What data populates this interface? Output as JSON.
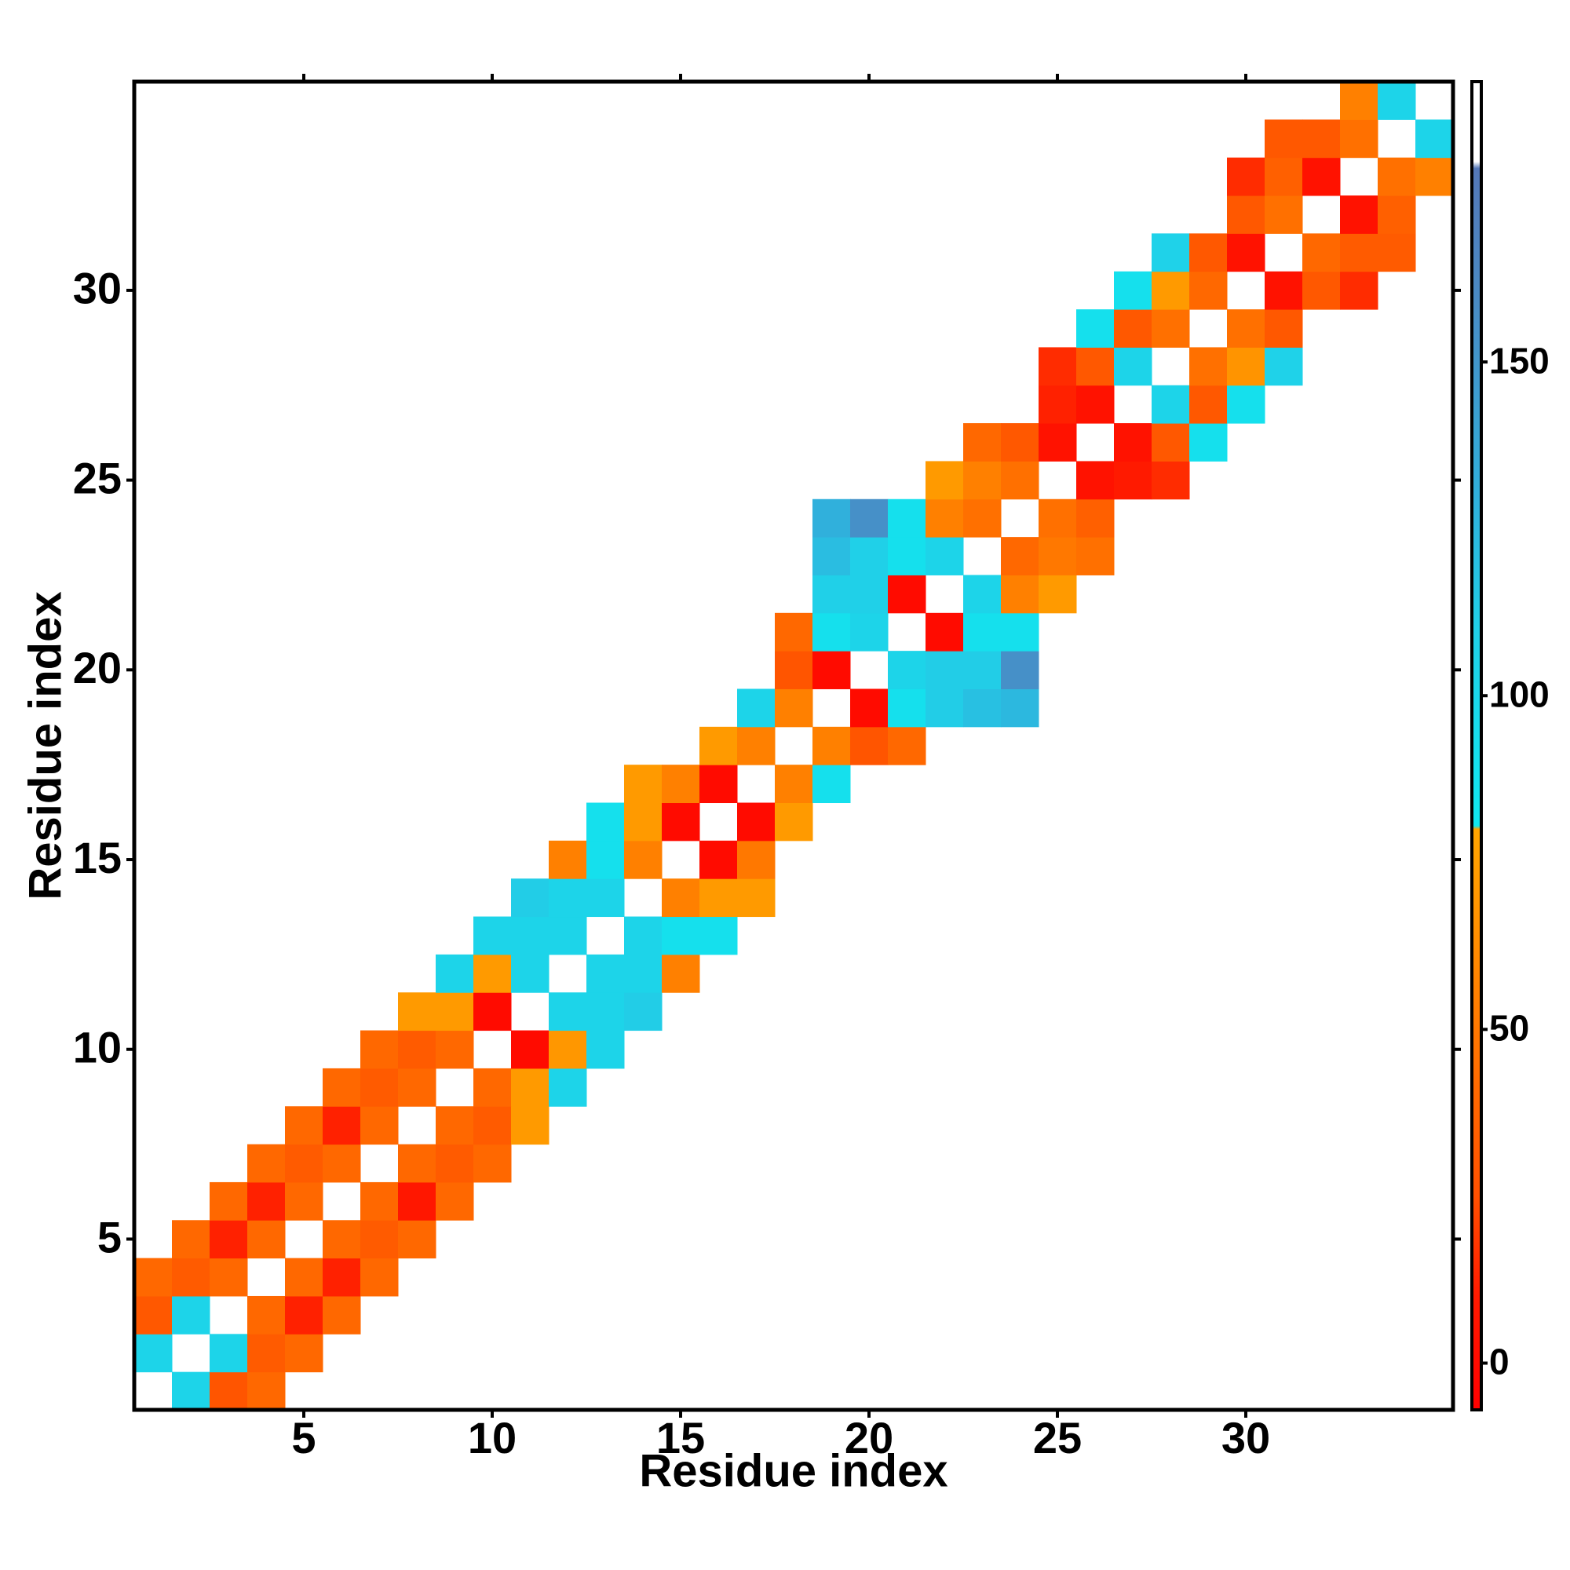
{
  "chart_data": {
    "type": "heatmap",
    "xlabel": "Residue index",
    "ylabel": "Residue index",
    "xlim": [
      0.5,
      35.5
    ],
    "ylim": [
      0.5,
      35.5
    ],
    "xticks": [
      5,
      10,
      15,
      20,
      25,
      30
    ],
    "yticks": [
      5,
      10,
      15,
      20,
      25,
      30
    ],
    "clim": [
      -7,
      192
    ],
    "cticks": [
      0,
      50,
      100,
      150
    ],
    "colorscale": [
      [
        -7,
        "#ff0000"
      ],
      [
        10,
        "#ff1a00"
      ],
      [
        25,
        "#ff5000"
      ],
      [
        45,
        "#ff7000"
      ],
      [
        65,
        "#ff9000"
      ],
      [
        80,
        "#ffa500"
      ],
      [
        80.5,
        "#10e8f0"
      ],
      [
        110,
        "#20d0e8"
      ],
      [
        130,
        "#30b0dc"
      ],
      [
        160,
        "#4a8ac4"
      ],
      [
        179,
        "#5478b8"
      ],
      [
        180,
        "#ffffff"
      ],
      [
        192,
        "#ffffff"
      ]
    ],
    "cells": [
      [
        2,
        1,
        105
      ],
      [
        3,
        1,
        28
      ],
      [
        4,
        1,
        40
      ],
      [
        1,
        2,
        105
      ],
      [
        3,
        2,
        105
      ],
      [
        4,
        2,
        32
      ],
      [
        5,
        2,
        40
      ],
      [
        1,
        3,
        30
      ],
      [
        2,
        3,
        105
      ],
      [
        4,
        3,
        40
      ],
      [
        5,
        3,
        12
      ],
      [
        6,
        3,
        40
      ],
      [
        1,
        4,
        40
      ],
      [
        2,
        4,
        32
      ],
      [
        3,
        4,
        40
      ],
      [
        5,
        4,
        40
      ],
      [
        6,
        4,
        12
      ],
      [
        7,
        4,
        40
      ],
      [
        2,
        5,
        40
      ],
      [
        3,
        5,
        12
      ],
      [
        4,
        5,
        40
      ],
      [
        6,
        5,
        40
      ],
      [
        7,
        5,
        32
      ],
      [
        8,
        5,
        40
      ],
      [
        3,
        6,
        40
      ],
      [
        4,
        6,
        12
      ],
      [
        5,
        6,
        40
      ],
      [
        7,
        6,
        40
      ],
      [
        8,
        6,
        8
      ],
      [
        9,
        6,
        40
      ],
      [
        4,
        7,
        40
      ],
      [
        5,
        7,
        32
      ],
      [
        6,
        7,
        40
      ],
      [
        8,
        7,
        40
      ],
      [
        9,
        7,
        32
      ],
      [
        10,
        7,
        40
      ],
      [
        5,
        8,
        40
      ],
      [
        6,
        8,
        12
      ],
      [
        7,
        8,
        40
      ],
      [
        9,
        8,
        40
      ],
      [
        10,
        8,
        32
      ],
      [
        11,
        8,
        72
      ],
      [
        6,
        9,
        40
      ],
      [
        7,
        9,
        32
      ],
      [
        8,
        9,
        40
      ],
      [
        10,
        9,
        40
      ],
      [
        11,
        9,
        72
      ],
      [
        12,
        9,
        105
      ],
      [
        7,
        10,
        40
      ],
      [
        8,
        10,
        32
      ],
      [
        9,
        10,
        40
      ],
      [
        11,
        10,
        0
      ],
      [
        12,
        10,
        70
      ],
      [
        13,
        10,
        105
      ],
      [
        8,
        11,
        72
      ],
      [
        9,
        11,
        72
      ],
      [
        10,
        11,
        0
      ],
      [
        12,
        11,
        105
      ],
      [
        13,
        11,
        105
      ],
      [
        14,
        11,
        112
      ],
      [
        9,
        12,
        105
      ],
      [
        10,
        12,
        72
      ],
      [
        11,
        12,
        105
      ],
      [
        13,
        12,
        105
      ],
      [
        14,
        12,
        105
      ],
      [
        15,
        12,
        55
      ],
      [
        10,
        13,
        105
      ],
      [
        11,
        13,
        105
      ],
      [
        12,
        13,
        105
      ],
      [
        14,
        13,
        105
      ],
      [
        15,
        13,
        90
      ],
      [
        16,
        13,
        90
      ],
      [
        11,
        14,
        112
      ],
      [
        12,
        14,
        105
      ],
      [
        13,
        14,
        105
      ],
      [
        15,
        14,
        55
      ],
      [
        16,
        14,
        72
      ],
      [
        17,
        14,
        72
      ],
      [
        12,
        15,
        55
      ],
      [
        13,
        15,
        90
      ],
      [
        14,
        15,
        55
      ],
      [
        16,
        15,
        0
      ],
      [
        17,
        15,
        50
      ],
      [
        13,
        16,
        90
      ],
      [
        14,
        16,
        72
      ],
      [
        15,
        16,
        0
      ],
      [
        17,
        16,
        0
      ],
      [
        18,
        16,
        72
      ],
      [
        14,
        17,
        72
      ],
      [
        15,
        17,
        55
      ],
      [
        16,
        17,
        0
      ],
      [
        18,
        17,
        55
      ],
      [
        19,
        17,
        90
      ],
      [
        16,
        18,
        72
      ],
      [
        17,
        18,
        55
      ],
      [
        19,
        18,
        55
      ],
      [
        20,
        18,
        28
      ],
      [
        21,
        18,
        40
      ],
      [
        17,
        19,
        105
      ],
      [
        18,
        19,
        55
      ],
      [
        20,
        19,
        0
      ],
      [
        21,
        19,
        90
      ],
      [
        22,
        19,
        112
      ],
      [
        23,
        19,
        120
      ],
      [
        24,
        19,
        125
      ],
      [
        18,
        20,
        28
      ],
      [
        19,
        20,
        0
      ],
      [
        21,
        20,
        105
      ],
      [
        22,
        20,
        112
      ],
      [
        23,
        20,
        112
      ],
      [
        24,
        20,
        155
      ],
      [
        18,
        21,
        40
      ],
      [
        19,
        21,
        90
      ],
      [
        20,
        21,
        105
      ],
      [
        22,
        21,
        0
      ],
      [
        23,
        21,
        90
      ],
      [
        24,
        21,
        90
      ],
      [
        19,
        22,
        110
      ],
      [
        20,
        22,
        110
      ],
      [
        21,
        22,
        0
      ],
      [
        23,
        22,
        105
      ],
      [
        24,
        22,
        55
      ],
      [
        25,
        22,
        72
      ],
      [
        19,
        23,
        122
      ],
      [
        20,
        23,
        110
      ],
      [
        21,
        23,
        90
      ],
      [
        22,
        23,
        105
      ],
      [
        24,
        23,
        40
      ],
      [
        25,
        23,
        50
      ],
      [
        26,
        23,
        45
      ],
      [
        19,
        24,
        130
      ],
      [
        20,
        24,
        155
      ],
      [
        21,
        24,
        90
      ],
      [
        22,
        24,
        55
      ],
      [
        23,
        24,
        45
      ],
      [
        25,
        24,
        45
      ],
      [
        26,
        24,
        35
      ],
      [
        22,
        25,
        72
      ],
      [
        23,
        25,
        55
      ],
      [
        24,
        25,
        45
      ],
      [
        26,
        25,
        5
      ],
      [
        27,
        25,
        10
      ],
      [
        28,
        25,
        15
      ],
      [
        23,
        26,
        40
      ],
      [
        24,
        26,
        30
      ],
      [
        25,
        26,
        5
      ],
      [
        27,
        26,
        5
      ],
      [
        28,
        26,
        30
      ],
      [
        29,
        26,
        90
      ],
      [
        25,
        27,
        12
      ],
      [
        26,
        27,
        5
      ],
      [
        28,
        27,
        105
      ],
      [
        29,
        27,
        30
      ],
      [
        30,
        27,
        90
      ],
      [
        25,
        28,
        15
      ],
      [
        26,
        28,
        30
      ],
      [
        27,
        28,
        105
      ],
      [
        29,
        28,
        45
      ],
      [
        30,
        28,
        68
      ],
      [
        31,
        28,
        108
      ],
      [
        26,
        29,
        90
      ],
      [
        27,
        29,
        30
      ],
      [
        28,
        29,
        45
      ],
      [
        30,
        29,
        45
      ],
      [
        31,
        29,
        30
      ],
      [
        27,
        30,
        90
      ],
      [
        28,
        30,
        72
      ],
      [
        29,
        30,
        40
      ],
      [
        31,
        30,
        5
      ],
      [
        32,
        30,
        30
      ],
      [
        33,
        30,
        15
      ],
      [
        28,
        31,
        108
      ],
      [
        29,
        31,
        30
      ],
      [
        30,
        31,
        5
      ],
      [
        32,
        31,
        40
      ],
      [
        33,
        31,
        32
      ],
      [
        34,
        31,
        32
      ],
      [
        30,
        32,
        30
      ],
      [
        31,
        32,
        45
      ],
      [
        33,
        32,
        5
      ],
      [
        34,
        32,
        35
      ],
      [
        30,
        33,
        15
      ],
      [
        31,
        33,
        35
      ],
      [
        32,
        33,
        5
      ],
      [
        34,
        33,
        45
      ],
      [
        35,
        33,
        55
      ],
      [
        31,
        34,
        30
      ],
      [
        32,
        34,
        30
      ],
      [
        33,
        34,
        45
      ],
      [
        35,
        34,
        105
      ],
      [
        33,
        35,
        55
      ],
      [
        34,
        35,
        105
      ]
    ]
  }
}
